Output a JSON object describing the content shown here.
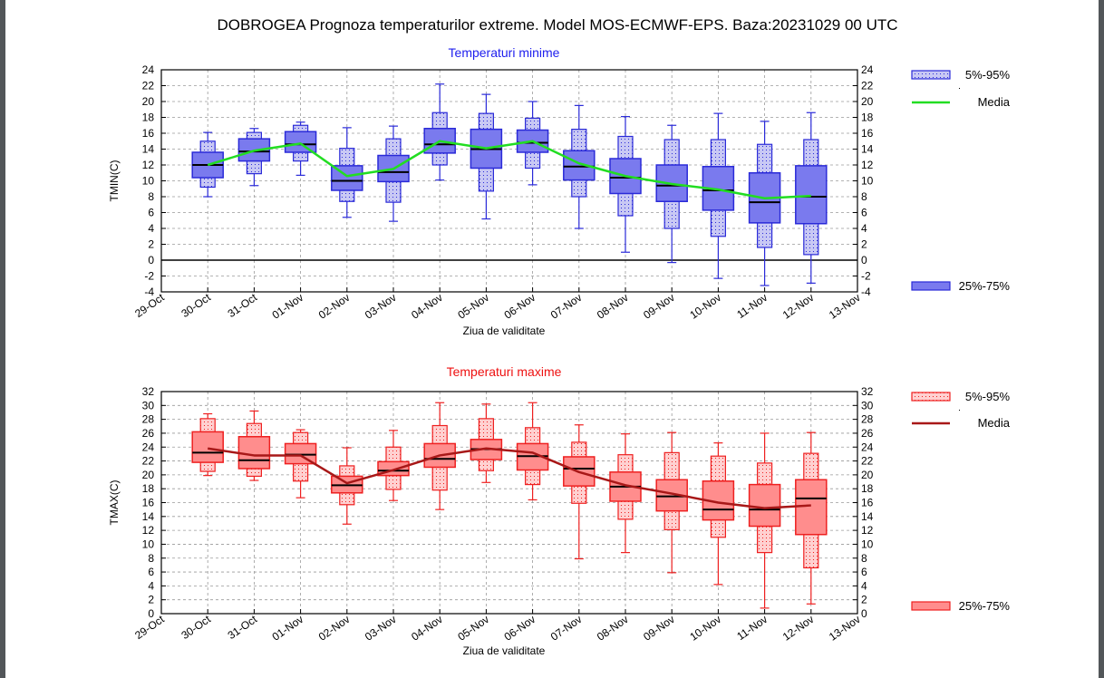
{
  "page": {
    "title": "DOBROGEA  Prognoza temperaturilor extreme.  Model MOS-ECMWF-EPS. Baza:20231029 00 UTC"
  },
  "colors": {
    "min_fill": "#7a7aee",
    "min_light": "#c8c8f4",
    "min_stroke": "#2a2ad8",
    "min_mean": "#22dd22",
    "max_fill": "#ff8d8d",
    "max_light": "#ffd0d0",
    "max_stroke": "#ee2020",
    "max_mean": "#a81818",
    "min_title": "#2020ee",
    "max_title": "#ee1010"
  },
  "chart_data": [
    {
      "type": "box",
      "title": "Temperaturi minime",
      "xlabel": "Ziua de validitate",
      "ylabel": "TMIN(C)",
      "ylim": [
        -4,
        24
      ],
      "yticks": [
        -4,
        -2,
        0,
        2,
        4,
        6,
        8,
        10,
        12,
        14,
        16,
        18,
        20,
        22,
        24
      ],
      "x_ticks": [
        "29-Oct",
        "30-Oct",
        "31-Oct",
        "01-Nov",
        "02-Nov",
        "03-Nov",
        "04-Nov",
        "05-Nov",
        "06-Nov",
        "07-Nov",
        "08-Nov",
        "09-Nov",
        "10-Nov",
        "11-Nov",
        "12-Nov",
        "13-Nov"
      ],
      "legend": {
        "placement": "right",
        "band_label": "5%-95%",
        "mean_label": "Media",
        "iqr_label": "25%-75%"
      },
      "categories": [
        "30-Oct",
        "31-Oct",
        "01-Nov",
        "02-Nov",
        "03-Nov",
        "04-Nov",
        "05-Nov",
        "06-Nov",
        "07-Nov",
        "08-Nov",
        "09-Nov",
        "10-Nov",
        "11-Nov",
        "12-Nov"
      ],
      "whisker_low": [
        8.0,
        9.4,
        10.7,
        5.4,
        4.9,
        10.1,
        5.2,
        9.5,
        4.0,
        1.0,
        -0.3,
        -2.3,
        -3.2,
        -2.9
      ],
      "p5": [
        9.2,
        10.9,
        12.5,
        7.4,
        7.3,
        12.0,
        8.7,
        11.6,
        8.0,
        5.6,
        4.0,
        3.0,
        1.6,
        0.7
      ],
      "p25": [
        10.4,
        12.5,
        13.6,
        8.8,
        9.9,
        13.5,
        11.6,
        13.6,
        10.1,
        8.4,
        7.4,
        6.3,
        4.7,
        4.6
      ],
      "median": [
        12.0,
        13.7,
        14.6,
        10.0,
        11.1,
        14.6,
        14.0,
        14.8,
        11.8,
        10.4,
        9.4,
        8.8,
        7.3,
        8.0
      ],
      "p75": [
        13.6,
        15.3,
        16.2,
        11.9,
        13.2,
        16.6,
        16.5,
        16.4,
        13.8,
        12.8,
        12.0,
        11.8,
        11.0,
        11.9
      ],
      "p95": [
        15.0,
        16.1,
        17.0,
        14.1,
        15.3,
        18.6,
        18.5,
        17.9,
        16.5,
        15.6,
        15.2,
        15.2,
        14.6,
        15.2
      ],
      "whisker_high": [
        16.1,
        16.6,
        17.4,
        16.7,
        16.9,
        22.2,
        20.9,
        20.0,
        19.5,
        18.1,
        17.0,
        18.5,
        17.5,
        18.6
      ],
      "mean": [
        12.0,
        13.8,
        14.7,
        10.6,
        11.5,
        15.0,
        14.1,
        15.0,
        12.2,
        10.6,
        9.6,
        8.9,
        7.8,
        8.1
      ]
    },
    {
      "type": "box",
      "title": "Temperaturi maxime",
      "xlabel": "Ziua de validitate",
      "ylabel": "TMAX(C)",
      "ylim": [
        0,
        32
      ],
      "yticks": [
        0,
        2,
        4,
        6,
        8,
        10,
        12,
        14,
        16,
        18,
        20,
        22,
        24,
        26,
        28,
        30,
        32
      ],
      "x_ticks": [
        "29-Oct",
        "30-Oct",
        "31-Oct",
        "01-Nov",
        "02-Nov",
        "03-Nov",
        "04-Nov",
        "05-Nov",
        "06-Nov",
        "07-Nov",
        "08-Nov",
        "09-Nov",
        "10-Nov",
        "11-Nov",
        "12-Nov",
        "13-Nov"
      ],
      "legend": {
        "placement": "right",
        "band_label": "5%-95%",
        "mean_label": "Media",
        "iqr_label": "25%-75%"
      },
      "categories": [
        "30-Oct",
        "31-Oct",
        "01-Nov",
        "02-Nov",
        "03-Nov",
        "04-Nov",
        "05-Nov",
        "06-Nov",
        "07-Nov",
        "08-Nov",
        "09-Nov",
        "10-Nov",
        "11-Nov",
        "12-Nov"
      ],
      "whisker_low": [
        19.9,
        19.2,
        16.7,
        12.9,
        16.3,
        15.0,
        18.9,
        16.4,
        7.9,
        8.8,
        5.9,
        4.2,
        0.8,
        1.4
      ],
      "p5": [
        20.5,
        19.8,
        19.1,
        15.7,
        17.9,
        17.8,
        20.6,
        18.6,
        15.9,
        13.6,
        12.1,
        11.0,
        8.8,
        6.6
      ],
      "p25": [
        21.8,
        20.9,
        21.6,
        17.4,
        19.9,
        21.1,
        22.2,
        20.7,
        18.4,
        16.2,
        14.8,
        13.5,
        12.6,
        11.4
      ],
      "median": [
        23.2,
        22.1,
        22.9,
        18.5,
        20.6,
        22.3,
        23.7,
        22.7,
        20.9,
        18.3,
        16.9,
        15.0,
        15.0,
        16.6
      ],
      "p75": [
        26.2,
        25.5,
        24.5,
        19.8,
        21.9,
        24.5,
        25.1,
        24.5,
        22.6,
        20.4,
        19.3,
        19.1,
        18.6,
        19.3
      ],
      "p95": [
        28.1,
        27.4,
        26.1,
        21.3,
        24.0,
        27.1,
        28.1,
        26.8,
        24.7,
        22.9,
        23.2,
        22.7,
        21.7,
        23.1
      ],
      "whisker_high": [
        28.8,
        29.2,
        26.5,
        23.9,
        26.4,
        30.4,
        30.2,
        30.4,
        27.2,
        25.9,
        26.1,
        24.6,
        26.0,
        26.1
      ],
      "mean": [
        23.8,
        22.8,
        22.8,
        18.8,
        20.7,
        22.8,
        23.8,
        23.2,
        20.4,
        18.5,
        17.3,
        16.0,
        15.2,
        15.6
      ]
    }
  ]
}
